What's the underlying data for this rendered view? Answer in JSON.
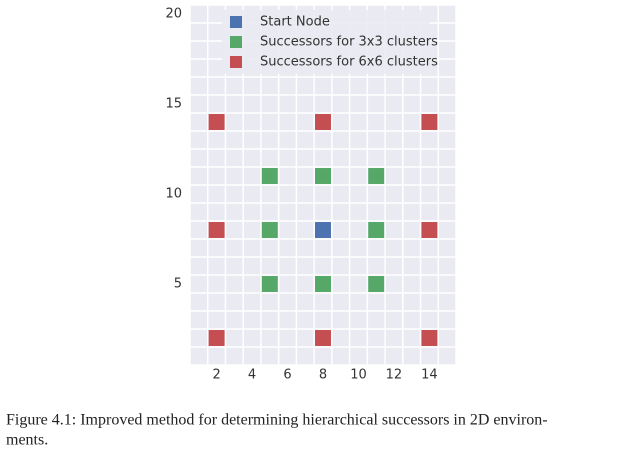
{
  "chart_data": {
    "type": "scatter",
    "series": [
      {
        "name": "Start Node",
        "color": "#4c72b0",
        "x": [
          8
        ],
        "y": [
          8
        ]
      },
      {
        "name": "Successors for 3x3 clusters",
        "color": "#55a868",
        "x": [
          5,
          8,
          11,
          5,
          11,
          5,
          8,
          11
        ],
        "y": [
          5,
          5,
          5,
          8,
          8,
          11,
          11,
          11
        ]
      },
      {
        "name": "Successors for 6x6 clusters",
        "color": "#c44e52",
        "x": [
          2,
          8,
          14,
          2,
          14,
          2,
          8,
          14
        ],
        "y": [
          2,
          2,
          2,
          8,
          8,
          14,
          14,
          14
        ]
      }
    ],
    "xlim": [
      0.5,
      15.5
    ],
    "ylim": [
      0.5,
      20.5
    ],
    "xticks": [
      2,
      4,
      6,
      8,
      10,
      12,
      14
    ],
    "yticks": [
      5,
      10,
      15,
      20
    ],
    "grid": true,
    "legend": "top"
  },
  "caption": [
    "Figure 4.1: Improved method for determining hierarchical successors in 2D environ-",
    "ments."
  ]
}
